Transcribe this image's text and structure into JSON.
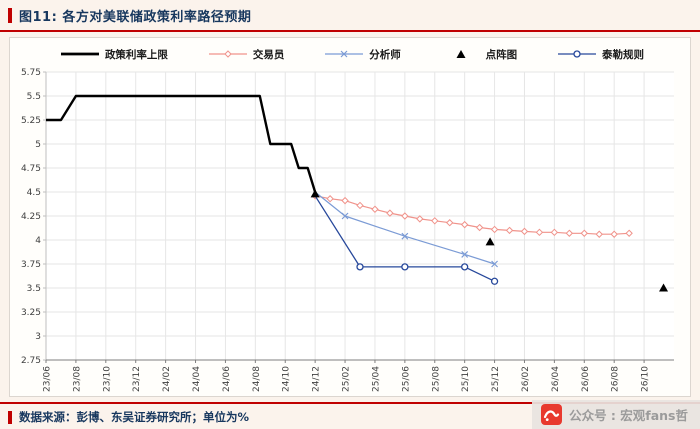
{
  "header": {
    "title": "图11: 各方对美联储政策利率路径预期"
  },
  "footer": {
    "source": "数据来源：彭博、东吴证券研究所；单位为%",
    "watermark": "公众号 : 宏观fans哲"
  },
  "colors": {
    "accent_red": "#c00000",
    "title_navy": "#17375e",
    "policy_black": "#000000",
    "trader_pink": "#f0938b",
    "analyst_blue": "#7b9bd5",
    "taylor_navy": "#27489b",
    "watermark_red": "#e8392e",
    "watermark_gray": "#9b9b9b",
    "grid_gray": "#e6e6e6"
  },
  "chart_data": {
    "type": "line",
    "title": "各方对美联储政策利率路径预期",
    "unit": "%",
    "ylim": [
      2.75,
      5.75
    ],
    "ytick_step": 0.25,
    "xlim_months": [
      0,
      42
    ],
    "x_label_month_step": 2,
    "x_axis_labels": [
      "23/06",
      "23/08",
      "23/10",
      "23/12",
      "24/02",
      "24/04",
      "24/06",
      "24/08",
      "24/10",
      "24/12",
      "25/02",
      "25/04",
      "25/06",
      "25/08",
      "25/10",
      "25/12",
      "26/02",
      "26/04",
      "26/06",
      "26/08",
      "26/10"
    ],
    "legend": [
      {
        "key": "policy_ceiling",
        "label": "政策利率上限",
        "swatch": "thick-line",
        "color": "#000000"
      },
      {
        "key": "trader",
        "label": "交易员",
        "swatch": "line-diamond",
        "color": "#f0938b"
      },
      {
        "key": "analyst",
        "label": "分析师",
        "swatch": "line-x",
        "color": "#7b9bd5"
      },
      {
        "key": "dot_plot",
        "label": "点阵图",
        "swatch": "triangle",
        "color": "#000000"
      },
      {
        "key": "taylor_rule",
        "label": "泰勒规则",
        "swatch": "line-circle",
        "color": "#27489b"
      }
    ],
    "series": [
      {
        "key": "policy_ceiling",
        "name": "政策利率上限",
        "color": "#000000",
        "width": 2.4,
        "marker": "none",
        "points": [
          [
            0,
            5.25
          ],
          [
            1,
            5.25
          ],
          [
            2,
            5.5
          ],
          [
            14.3,
            5.5
          ],
          [
            15,
            5.0
          ],
          [
            16.4,
            5.0
          ],
          [
            16.9,
            4.75
          ],
          [
            17.5,
            4.75
          ],
          [
            18,
            4.5
          ]
        ]
      },
      {
        "key": "trader",
        "name": "交易员",
        "color": "#f0938b",
        "width": 1.2,
        "marker": "diamond",
        "points": [
          [
            18,
            4.46
          ],
          [
            19,
            4.43
          ],
          [
            20,
            4.41
          ],
          [
            21,
            4.36
          ],
          [
            22,
            4.32
          ],
          [
            23,
            4.28
          ],
          [
            24,
            4.25
          ],
          [
            25,
            4.22
          ],
          [
            26,
            4.2
          ],
          [
            27,
            4.18
          ],
          [
            28,
            4.16
          ],
          [
            29,
            4.13
          ],
          [
            30,
            4.11
          ],
          [
            31,
            4.1
          ],
          [
            32,
            4.09
          ],
          [
            33,
            4.08
          ],
          [
            34,
            4.08
          ],
          [
            35,
            4.07
          ],
          [
            36,
            4.07
          ],
          [
            37,
            4.06
          ],
          [
            38,
            4.06
          ],
          [
            39,
            4.07
          ]
        ]
      },
      {
        "key": "analyst",
        "name": "分析师",
        "color": "#7b9bd5",
        "width": 1.2,
        "marker": "x",
        "points": [
          [
            18,
            4.5
          ],
          [
            20,
            4.25
          ],
          [
            24,
            4.04
          ],
          [
            28,
            3.85
          ],
          [
            30,
            3.75
          ]
        ],
        "marker_points": [
          [
            20,
            4.25
          ],
          [
            24,
            4.04
          ],
          [
            28,
            3.85
          ],
          [
            30,
            3.75
          ]
        ]
      },
      {
        "key": "taylor_rule",
        "name": "泰勒规则",
        "color": "#27489b",
        "width": 1.3,
        "marker": "circle",
        "points": [
          [
            18,
            4.46
          ],
          [
            21,
            3.72
          ],
          [
            28,
            3.72
          ],
          [
            30,
            3.57
          ]
        ],
        "marker_points": [
          [
            21,
            3.72
          ],
          [
            24,
            3.72
          ],
          [
            28,
            3.72
          ],
          [
            30,
            3.57
          ]
        ]
      },
      {
        "key": "dot_plot",
        "name": "点阵图",
        "color": "#000000",
        "marker": "triangle",
        "line": false,
        "points": [
          [
            18,
            4.48
          ],
          [
            29.7,
            3.98
          ],
          [
            41.3,
            3.5
          ]
        ]
      }
    ]
  }
}
